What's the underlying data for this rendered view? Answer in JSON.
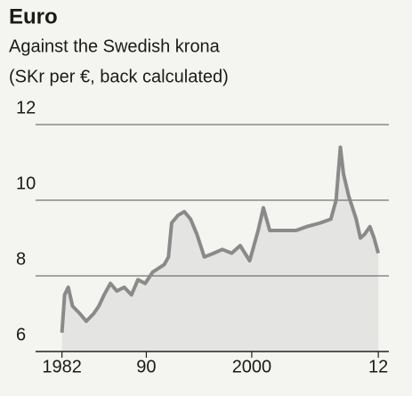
{
  "chart_data": {
    "type": "line",
    "title": "Euro",
    "subtitle": "Against the Swedish krona",
    "units": "(SKr per €, back calculated)",
    "x": [
      1982.0,
      1982.25,
      1982.6,
      1983.0,
      1983.7,
      1984.3,
      1985.0,
      1985.5,
      1986.0,
      1986.6,
      1987.2,
      1987.9,
      1988.6,
      1989.2,
      1989.9,
      1990.6,
      1991.7,
      1992.1,
      1992.4,
      1993.0,
      1993.6,
      1994.2,
      1994.8,
      1995.5,
      1996.4,
      1997.2,
      1998.1,
      1998.9,
      1999.8,
      2000.6,
      2001.1,
      2001.7,
      2002.5,
      2003.3,
      2004.2,
      2005.2,
      2006.5,
      2007.5,
      2008.0,
      2008.4,
      2008.7,
      2009.2,
      2009.9,
      2010.3,
      2010.7,
      2011.2,
      2011.6,
      2012.0
    ],
    "series": [
      {
        "color": "#8a8a8a",
        "values": [
          6.5,
          7.5,
          7.7,
          7.2,
          7.0,
          6.8,
          7.0,
          7.2,
          7.5,
          7.8,
          7.6,
          7.7,
          7.5,
          7.9,
          7.8,
          8.1,
          8.3,
          8.5,
          9.4,
          9.6,
          9.7,
          9.5,
          9.1,
          8.5,
          8.6,
          8.7,
          8.6,
          8.8,
          8.4,
          9.2,
          9.8,
          9.2,
          9.2,
          9.2,
          9.2,
          9.3,
          9.4,
          9.5,
          10.0,
          11.4,
          10.7,
          10.1,
          9.5,
          9.0,
          9.1,
          9.3,
          9.0,
          8.6
        ]
      }
    ],
    "xlim": [
      1979.5,
      2013
    ],
    "ylim": [
      6,
      12
    ],
    "xticks": [
      1982,
      {
        "value": 1990,
        "label": "90"
      },
      2000,
      {
        "value": 2012,
        "label": "12"
      }
    ],
    "yticks": [
      6,
      8,
      10,
      12
    ],
    "grid": true,
    "area_color": "#e4e4e2"
  }
}
